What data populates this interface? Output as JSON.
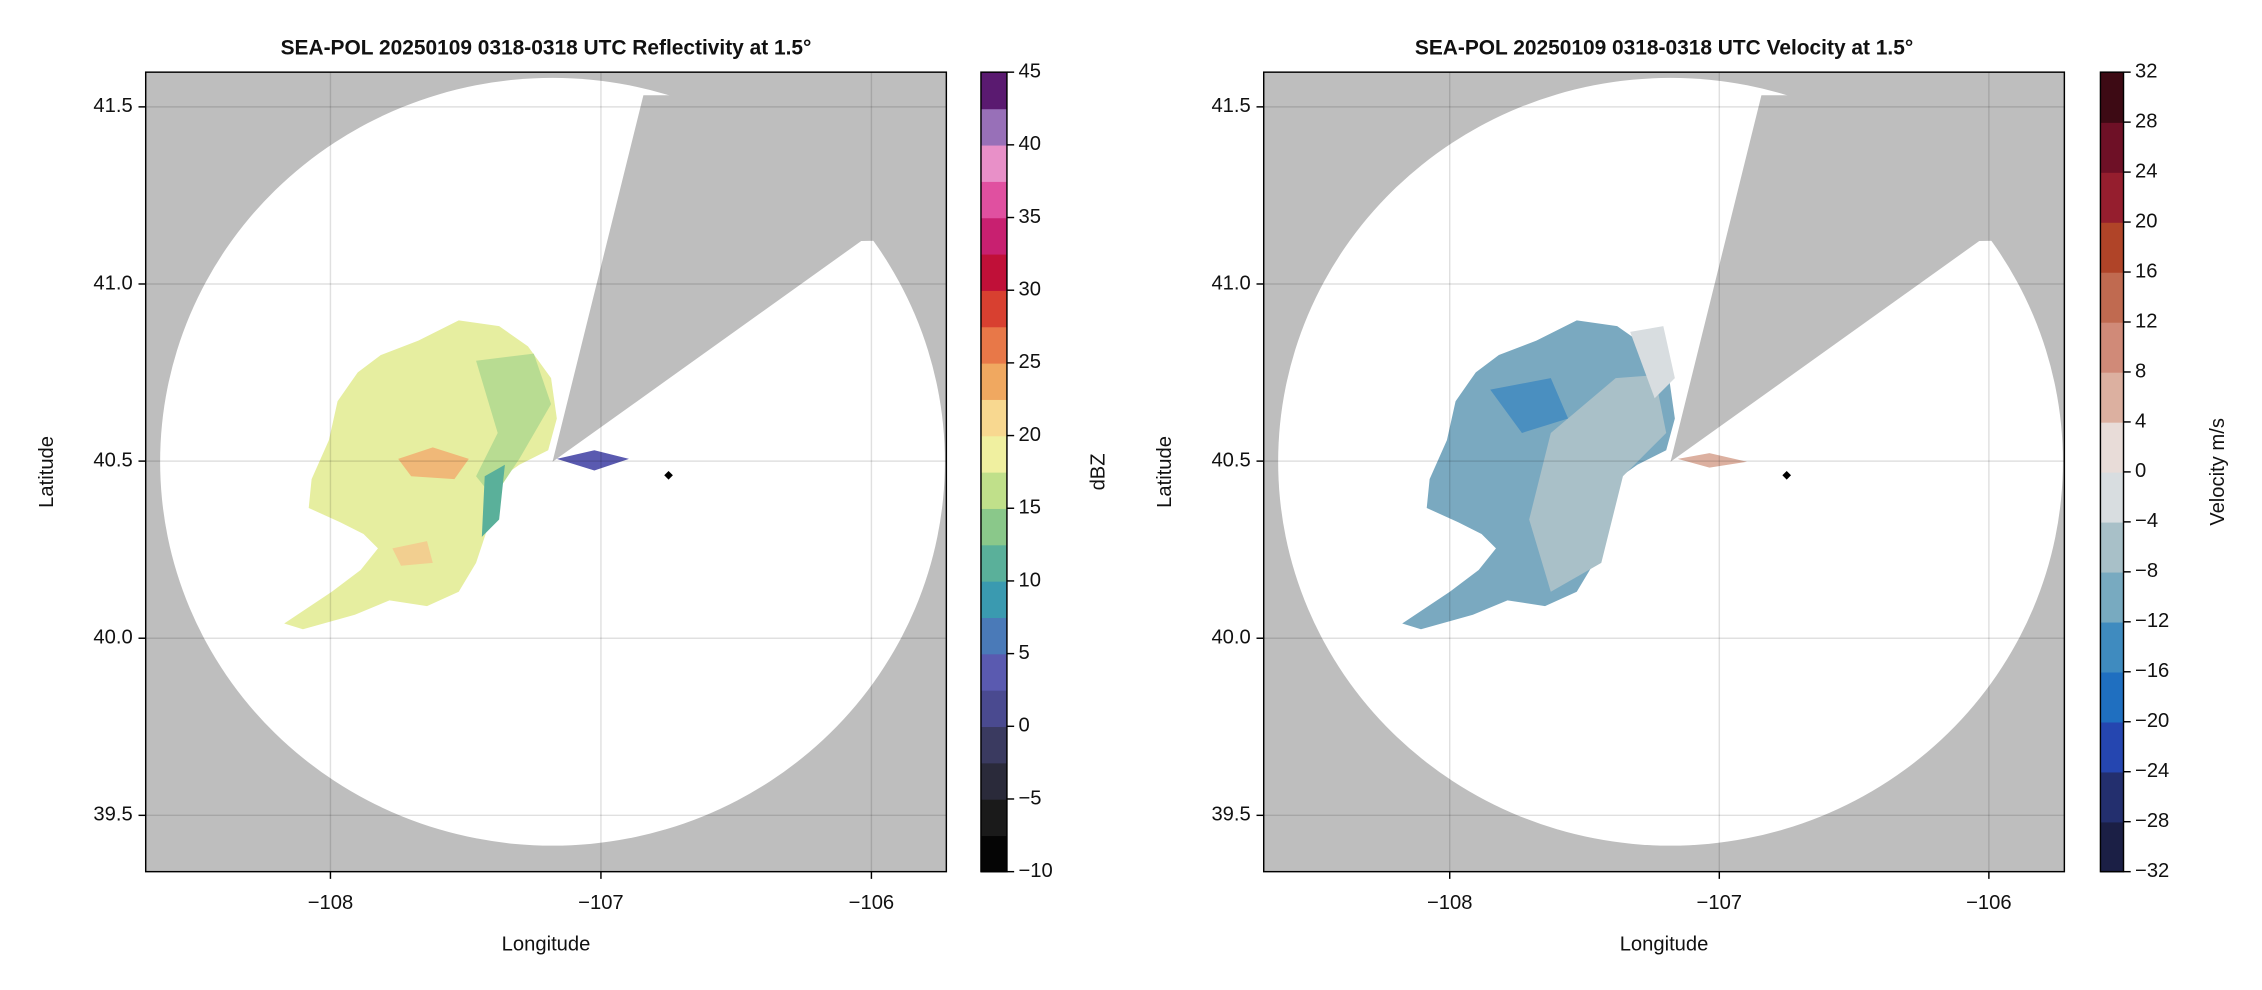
{
  "chart_data": [
    {
      "type": "map",
      "title": "SEA-POL 20250109 0318-0318 UTC Reflectivity at 1.5°",
      "xlabel": "Longitude",
      "ylabel": "Latitude",
      "xlim": [
        -108.683,
        -105.723
      ],
      "ylim": [
        39.341,
        41.598
      ],
      "xticks": [
        {
          "value": -108,
          "label": "−108"
        },
        {
          "value": -107,
          "label": "−107"
        },
        {
          "value": -106,
          "label": "−106"
        }
      ],
      "yticks": [
        {
          "value": 39.5,
          "label": "39.5"
        },
        {
          "value": 40,
          "label": "40.0"
        },
        {
          "value": 40.5,
          "label": "40.5"
        },
        {
          "value": 41,
          "label": "41.0"
        },
        {
          "value": 41.5,
          "label": "41.5"
        }
      ],
      "grid": true,
      "marker": {
        "x": -106.75,
        "y": 40.46
      },
      "colorbar": {
        "label": "dBZ",
        "lim": [
          -10,
          45
        ],
        "ticks": [
          {
            "value": -10,
            "label": "−10"
          },
          {
            "value": -5,
            "label": "−5"
          },
          0,
          5,
          10,
          15,
          20,
          25,
          30,
          35,
          40,
          45
        ],
        "colors": [
          "#050505",
          "#1a1a1a",
          "#2a2a3a",
          "#3a3a60",
          "#4a4a90",
          "#5a5ab0",
          "#4a7ab8",
          "#3a9ab0",
          "#5ab09a",
          "#8ac88a",
          "#c0e08a",
          "#f0f0a0",
          "#f8d890",
          "#f0a860",
          "#e87848",
          "#d84030",
          "#c01038",
          "#c82070",
          "#e050a0",
          "#e890c8",
          "#9870b8",
          "#5a1a70"
        ]
      }
    },
    {
      "type": "map",
      "title": "SEA-POL 20250109 0318-0318 UTC Velocity at 1.5°",
      "xlabel": "Longitude",
      "ylabel": "Latitude",
      "xlim": [
        -108.69,
        -105.72
      ],
      "ylim": [
        39.341,
        41.598
      ],
      "xticks": [
        {
          "value": -108,
          "label": "−108"
        },
        {
          "value": -107,
          "label": "−107"
        },
        {
          "value": -106,
          "label": "−106"
        }
      ],
      "yticks": [
        {
          "value": 39.5,
          "label": "39.5"
        },
        {
          "value": 40,
          "label": "40.0"
        },
        {
          "value": 40.5,
          "label": "40.5"
        },
        {
          "value": 41,
          "label": "41.0"
        },
        {
          "value": 41.5,
          "label": "41.5"
        }
      ],
      "grid": true,
      "marker": {
        "x": -106.75,
        "y": 40.46
      },
      "colorbar": {
        "label": "Velocity m/s",
        "lim": [
          -32,
          32
        ],
        "ticks": [
          {
            "value": -32,
            "label": "−32"
          },
          {
            "value": -28,
            "label": "−28"
          },
          {
            "value": -24,
            "label": "−24"
          },
          {
            "value": -20,
            "label": "−20"
          },
          {
            "value": -16,
            "label": "−16"
          },
          {
            "value": -12,
            "label": "−12"
          },
          {
            "value": -8,
            "label": "−8"
          },
          {
            "value": -4,
            "label": "−4"
          },
          0,
          4,
          8,
          12,
          16,
          20,
          24,
          28,
          32
        ],
        "colors": [
          "#1b1f45",
          "#232f6e",
          "#2546b0",
          "#1f6fc0",
          "#3f8bbf",
          "#78aac0",
          "#a8c0c8",
          "#d8dde0",
          "#e8dcd8",
          "#dcb0a0",
          "#d08a78",
          "#c06a50",
          "#b04428",
          "#951e2e",
          "#6e1026",
          "#3d0a14"
        ]
      }
    }
  ]
}
